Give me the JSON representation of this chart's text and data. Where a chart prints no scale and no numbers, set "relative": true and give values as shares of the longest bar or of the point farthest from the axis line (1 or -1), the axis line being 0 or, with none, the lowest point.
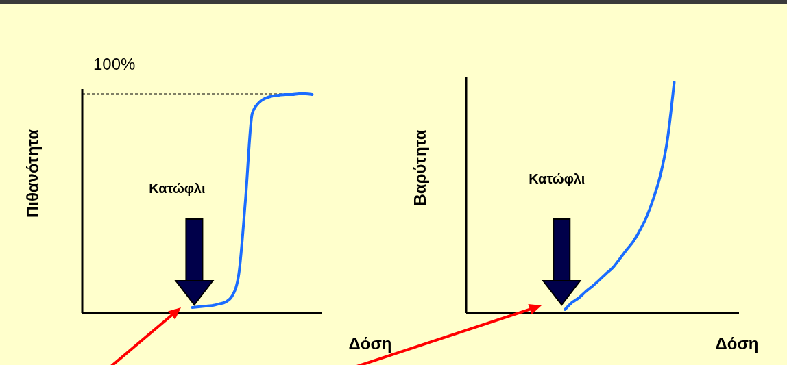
{
  "chart_data": [
    {
      "type": "line",
      "relative": true,
      "ylabel": "Πιθανότητα",
      "xlabel": "Δόση",
      "annotations": [
        "Κατώφλι"
      ],
      "ref_lines": [
        {
          "axis": "y",
          "value": 1,
          "label": "100%",
          "line_style": "dashed",
          "color": "#000000"
        }
      ],
      "categories": [
        null,
        null,
        null,
        null,
        null,
        null,
        null,
        null,
        null,
        null,
        null,
        null,
        null,
        null,
        null,
        null,
        null,
        null,
        null,
        null,
        null,
        null,
        null,
        null,
        null,
        null,
        null,
        null,
        null,
        null,
        null,
        null,
        null,
        null,
        null,
        null
      ],
      "series": [
        {
          "color": "#1a6cff",
          "values": [
            null,
            null,
            null,
            null,
            null,
            null,
            null,
            null,
            null,
            null,
            null,
            null,
            null,
            null,
            null,
            null,
            0.025,
            0.028,
            0.031,
            0.034,
            0.041,
            0.05,
            0.078,
            0.18,
            0.52,
            0.91,
            0.96,
            0.98,
            0.99,
            0.994,
            0.997,
            0.997,
            1,
            1,
            0.997,
            null
          ]
        }
      ]
    },
    {
      "type": "line",
      "relative": true,
      "ylabel": "Βαρύτητα",
      "xlabel": "Δόση",
      "annotations": [
        "Κατώφλι"
      ],
      "categories": [
        null,
        null,
        null,
        null,
        null,
        null,
        null,
        null,
        null,
        null,
        null,
        null,
        null,
        null,
        null,
        null,
        null,
        null,
        null,
        null,
        null,
        null,
        null,
        null,
        null,
        null,
        null,
        null,
        null,
        null,
        null,
        null,
        null,
        null,
        null,
        null,
        null,
        null,
        null,
        null
      ],
      "series": [
        {
          "color": "#1a6cff",
          "values": [
            null,
            null,
            null,
            null,
            null,
            null,
            null,
            null,
            null,
            null,
            null,
            null,
            null,
            null,
            0.015,
            0.045,
            0.065,
            0.092,
            0.116,
            0.142,
            0.17,
            0.196,
            0.234,
            0.273,
            0.31,
            0.36,
            0.42,
            0.5,
            0.6,
            0.75,
            1,
            null,
            null,
            null,
            null,
            null,
            null,
            null,
            null,
            null
          ]
        }
      ]
    }
  ]
}
